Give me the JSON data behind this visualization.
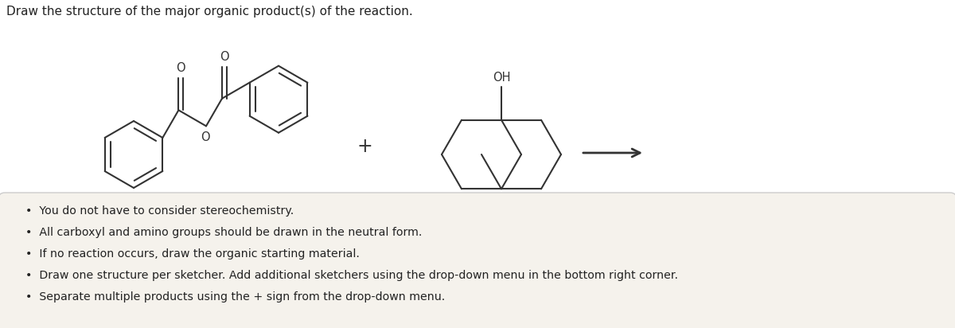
{
  "title": "Draw the structure of the major organic product(s) of the reaction.",
  "title_fontsize": 11,
  "title_color": "#222222",
  "background_color": "#ffffff",
  "box_background": "#f5f2ec",
  "box_edge_color": "#cccccc",
  "line_color": "#333333",
  "line_width": 1.5,
  "bullet_points": [
    "You do not have to consider stereochemistry.",
    "All carboxyl and amino groups should be drawn in the neutral form.",
    "If no reaction occurs, draw the organic starting material.",
    "Draw one structure per sketcher. Add additional sketchers using the drop-down menu in the bottom right corner.",
    "Separate multiple products using the + sign from the drop-down menu."
  ],
  "bullet_fontsize": 10.2,
  "bullet_color": "#222222",
  "label_fontsize": 10.5
}
